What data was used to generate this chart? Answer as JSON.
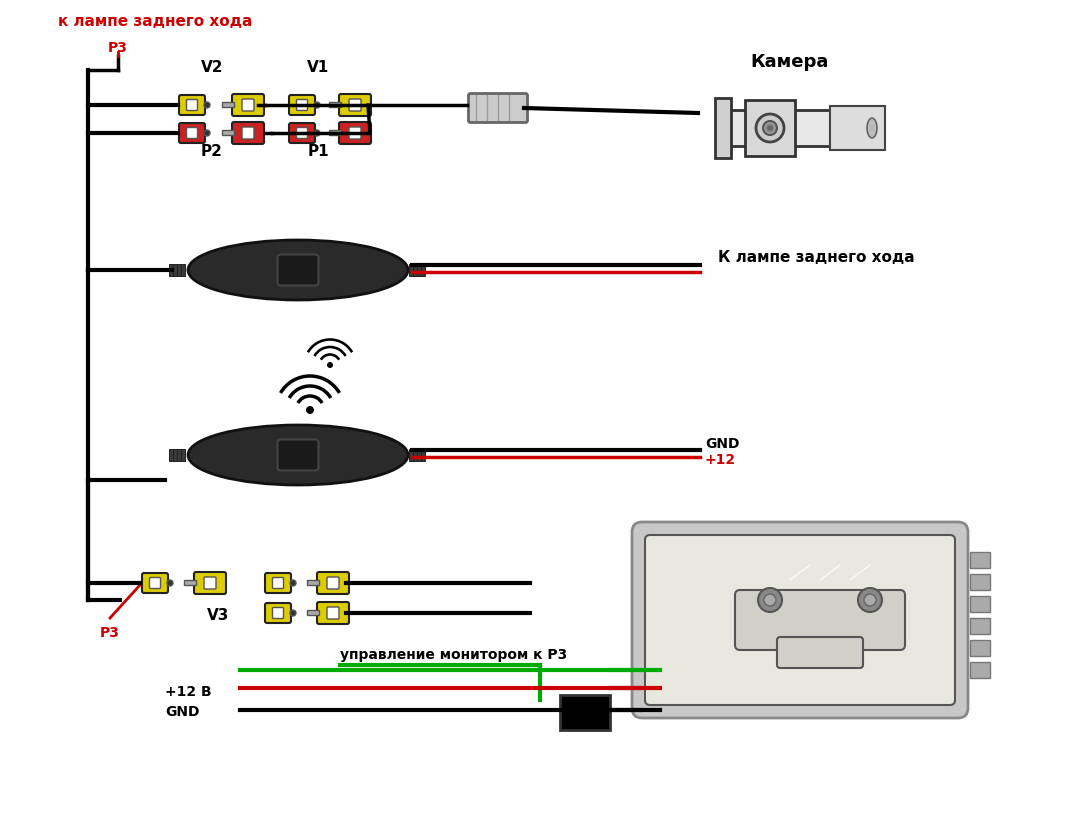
{
  "bg_color": "#ffffff",
  "text_color": "#000000",
  "red_color": "#cc0000",
  "green_color": "#00aa00",
  "yellow_color": "#ddcc00",
  "dark_gray": "#333333",
  "label_camera": "Камера",
  "label_k_lampe_top": "к лампе заднего хода",
  "label_k_lampe_right": "К лампе заднего хода",
  "label_p3_top": "Р3",
  "label_v2": "V2",
  "label_v1": "V1",
  "label_p2": "Р2",
  "label_p1": "Р1",
  "label_v3": "V3",
  "label_p3_bot": "Р3",
  "label_gnd": "GND",
  "label_plus12": "+12",
  "label_plus12v": "+12 В",
  "label_gnd2": "GND",
  "label_upravlenie": "управление монитором к Р3",
  "figsize": [
    10.72,
    8.13
  ],
  "dpi": 100
}
